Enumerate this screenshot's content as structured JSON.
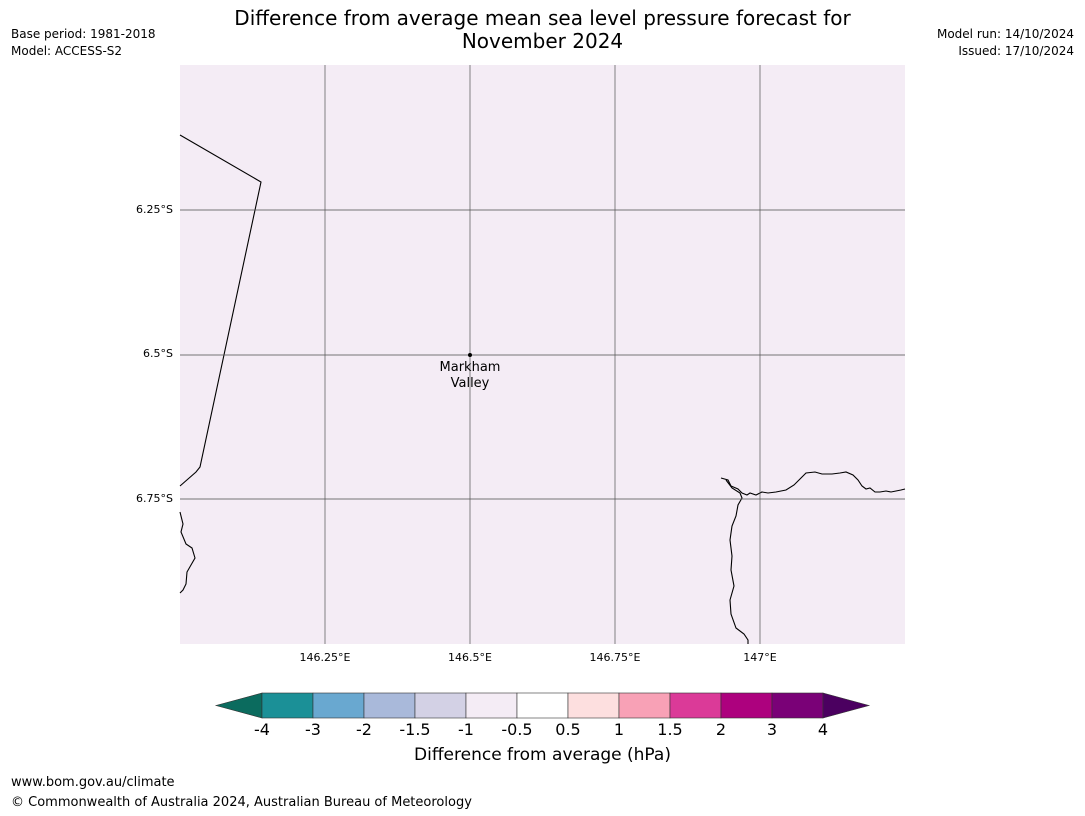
{
  "title_line1": "Difference from average mean sea level pressure forecast for",
  "title_line2": "November 2024",
  "base_period": "Base period: 1981-2018",
  "model": "Model: ACCESS-S2",
  "model_run": "Model run: 14/10/2024",
  "issued": "Issued: 17/10/2024",
  "map": {
    "background_color": "#f4ecf5",
    "lat_labels": [
      "6.25°S",
      "6.5°S",
      "6.75°S"
    ],
    "lon_labels": [
      "146.25°E",
      "146.5°E",
      "146.75°E",
      "147°E"
    ],
    "place": {
      "name_line1": "Markham",
      "name_line2": "Valley",
      "lon": 146.5,
      "lat": -6.5
    }
  },
  "colorbar": {
    "title": "Difference from average (hPa)",
    "ticks": [
      "-4",
      "-3",
      "-2",
      "-1.5",
      "-1",
      "-0.5",
      "0.5",
      "1",
      "1.5",
      "2",
      "3",
      "4"
    ],
    "under_color": "#0b6b5e",
    "over_color": "#4b0060",
    "colors": [
      "#1b9097",
      "#69a8d0",
      "#a9b9da",
      "#d3d1e5",
      "#f4ecf5",
      "#ffffff",
      "#fddfdf",
      "#f8a1b6",
      "#db3a98",
      "#ad017e",
      "#7a0177"
    ]
  },
  "footer": {
    "url": "www.bom.gov.au/climate",
    "copyright": "© Commonwealth of Australia 2024, Australian Bureau of Meteorology"
  }
}
